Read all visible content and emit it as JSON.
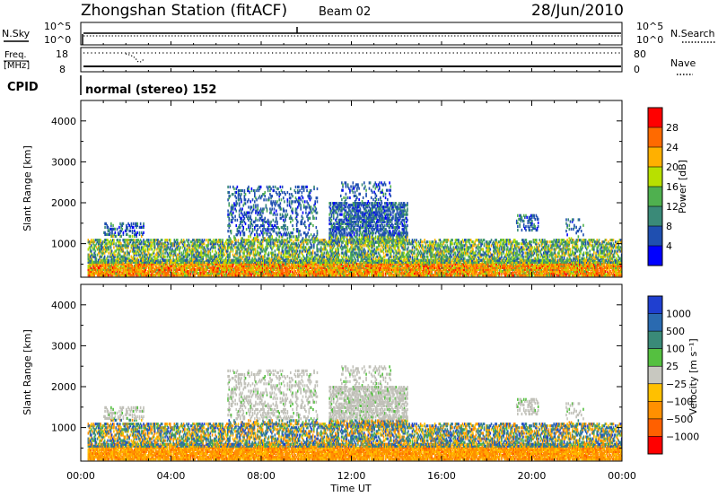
{
  "header": {
    "station": "Zhongshan Station (fitACF)",
    "beam": "Beam 02",
    "date": "28/Jun/2010"
  },
  "top_panels": {
    "nsky_label": "N.Sky",
    "nsearch_label": "N.Search",
    "nsky_ticks": [
      "10^5",
      "10^0"
    ],
    "nsearch_ticks": [
      "10^5",
      "10^0"
    ],
    "freq_label_line1": "Freq.",
    "freq_label_line2": "[MHz]",
    "freq_ticks": [
      "18",
      "8"
    ],
    "nave_label": "Nave",
    "nave_ticks": [
      "80",
      "0"
    ],
    "cpid_label": "CPID",
    "cpid_text": "normal (stereo) 152"
  },
  "chart_data": [
    {
      "type": "heatmap",
      "panel": "power",
      "ylabel": "Slant Range [km]",
      "yticks": [
        "4000",
        "3000",
        "2000",
        "1000"
      ],
      "ylim": [
        180,
        4500
      ],
      "colorbar_label": "Power [dB]",
      "colorbar_ticks": [
        "28",
        "24",
        "20",
        "16",
        "12",
        "8",
        "4"
      ],
      "colorbar_colors": [
        "#ff0000",
        "#ff6a00",
        "#ffb000",
        "#b8e000",
        "#4fb04f",
        "#3a8a78",
        "#1f4fb0",
        "#0000ff"
      ],
      "x_range_hours": [
        0,
        24
      ]
    },
    {
      "type": "heatmap",
      "panel": "velocity",
      "ylabel": "Slant Range [km]",
      "yticks": [
        "4000",
        "3000",
        "2000",
        "1000"
      ],
      "ylim": [
        180,
        4500
      ],
      "xlabel": "Time UT",
      "xticks": [
        "00:00",
        "04:00",
        "08:00",
        "12:00",
        "16:00",
        "20:00",
        "00:00"
      ],
      "colorbar_label": "Velocity [m s⁻¹]",
      "colorbar_ticks": [
        "1000",
        "500",
        "100",
        "25",
        "−25",
        "−100",
        "−500",
        "−1000"
      ],
      "colorbar_colors": [
        "#1f3fd0",
        "#2a6ab0",
        "#3a8a78",
        "#55c040",
        "#c8c8c0",
        "#ffc000",
        "#ff9000",
        "#ff6000",
        "#ff0000"
      ],
      "x_range_hours": [
        0,
        24
      ]
    }
  ],
  "colors": {
    "ground_scatter": "#c0c0b8",
    "axis": "#000000"
  }
}
